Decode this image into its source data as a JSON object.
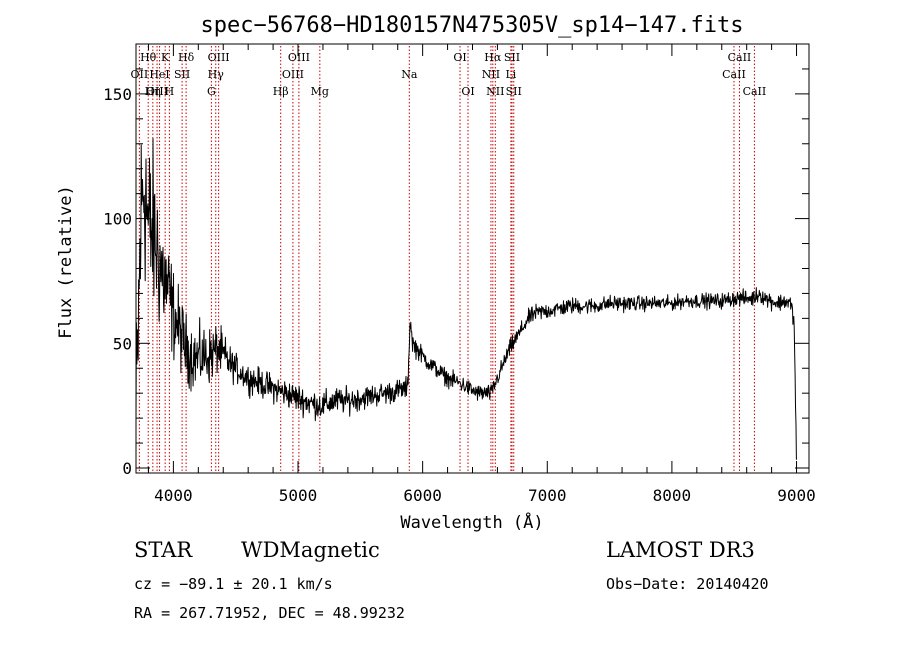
{
  "chart_data": {
    "type": "line",
    "title": "spec−56768−HD180157N475305V_sp14−147.fits",
    "xlabel": "Wavelength (Å)",
    "ylabel": "Flux (relative)",
    "xlim": [
      3700,
      9100
    ],
    "ylim": [
      -2,
      170
    ],
    "xticks": [
      4000,
      5000,
      6000,
      7000,
      8000,
      9000
    ],
    "yticks": [
      0,
      50,
      100,
      150
    ],
    "x_minor_step": 200,
    "y_minor_step": 10,
    "grid": false,
    "spectrum_envelope": {
      "x": [
        3700,
        3720,
        3740,
        3760,
        3780,
        3800,
        3830,
        3860,
        3900,
        3950,
        4000,
        4050,
        4100,
        4150,
        4200,
        4250,
        4300,
        4350,
        4400,
        4450,
        4500,
        4600,
        4700,
        4800,
        4900,
        5000,
        5100,
        5200,
        5300,
        5400,
        5500,
        5600,
        5700,
        5800,
        5880,
        5900,
        5920,
        5950,
        6000,
        6050,
        6100,
        6200,
        6300,
        6400,
        6450,
        6500,
        6550,
        6600,
        6650,
        6700,
        6750,
        6800,
        6850,
        6900,
        7000,
        7100,
        7200,
        7300,
        7400,
        7500,
        7600,
        7700,
        7800,
        7900,
        8000,
        8100,
        8200,
        8300,
        8400,
        8500,
        8600,
        8650,
        8700,
        8750,
        8800,
        8850,
        8900,
        8950,
        8980,
        9000
      ],
      "y": [
        15,
        60,
        100,
        115,
        110,
        95,
        95,
        90,
        80,
        72,
        62,
        55,
        48,
        45,
        44,
        45,
        45,
        48,
        45,
        42,
        40,
        36,
        34,
        32,
        30,
        28,
        26,
        25,
        27,
        27,
        28,
        29,
        30,
        31,
        32,
        60,
        50,
        48,
        45,
        42,
        40,
        36,
        34,
        31,
        30,
        30,
        30,
        36,
        42,
        48,
        52,
        56,
        60,
        62,
        63,
        64,
        65,
        65,
        65,
        66,
        66,
        66,
        66,
        66,
        66,
        67,
        67,
        67,
        67,
        68,
        68,
        68,
        70,
        68,
        67,
        66,
        67,
        66,
        60,
        2
      ]
    },
    "spectrum_noise": {
      "x": [
        3700,
        3800,
        3900,
        4000,
        4100,
        4200,
        4300,
        4400,
        4500,
        4800,
        5200,
        5600,
        5900,
        6000,
        6500,
        7000,
        8000,
        8900
      ],
      "amp": [
        38,
        35,
        24,
        16,
        12,
        11,
        10,
        8,
        5,
        5,
        5,
        4,
        4,
        3,
        3,
        3,
        2.5,
        3
      ]
    },
    "line_markers": [
      {
        "label": "Hθ",
        "x": 3798,
        "row": 0
      },
      {
        "label": "K",
        "x": 3934,
        "row": 0
      },
      {
        "label": "Hδ",
        "x": 4102,
        "row": 0
      },
      {
        "label": "OIII",
        "x": 4363,
        "row": 0
      },
      {
        "label": "OIII",
        "x": 5007,
        "row": 0
      },
      {
        "label": "OI",
        "x": 6300,
        "row": 0
      },
      {
        "label": "Hα",
        "x": 6563,
        "row": 0
      },
      {
        "label": "SII",
        "x": 6717,
        "row": 0
      },
      {
        "label": "CaII",
        "x": 8542,
        "row": 0
      },
      {
        "label": "OII",
        "x": 3727,
        "row": 1
      },
      {
        "label": "HeI",
        "x": 3889,
        "row": 1
      },
      {
        "label": "SII",
        "x": 4070,
        "row": 1
      },
      {
        "label": "Hγ",
        "x": 4340,
        "row": 1
      },
      {
        "label": "OIII",
        "x": 4959,
        "row": 1
      },
      {
        "label": "Na",
        "x": 5893,
        "row": 1
      },
      {
        "label": "NII",
        "x": 6548,
        "row": 1
      },
      {
        "label": "Li",
        "x": 6708,
        "row": 1
      },
      {
        "label": "CaII",
        "x": 8498,
        "row": 1
      },
      {
        "label": "OIII",
        "x": 3869,
        "row": 2
      },
      {
        "label": "Hη",
        "x": 3835,
        "row": 2
      },
      {
        "label": "H",
        "x": 3968,
        "row": 2
      },
      {
        "label": "G",
        "x": 4305,
        "row": 2
      },
      {
        "label": "Hβ",
        "x": 4861,
        "row": 2
      },
      {
        "label": "Mg",
        "x": 5175,
        "row": 2
      },
      {
        "label": "OI",
        "x": 6364,
        "row": 2
      },
      {
        "label": "NII",
        "x": 6583,
        "row": 2
      },
      {
        "label": "SII",
        "x": 6731,
        "row": 2
      },
      {
        "label": "CaII",
        "x": 8662,
        "row": 2
      }
    ],
    "marker_color": "#cc0000"
  },
  "info": {
    "class": "STAR",
    "subclass": "WDMagnetic",
    "survey": "LAMOST DR3",
    "cz": "cz = −89.1 ± 20.1 km/s",
    "obs_date": "Obs−Date: 20140420",
    "coords": "RA = 267.71952, DEC =  48.99232"
  }
}
